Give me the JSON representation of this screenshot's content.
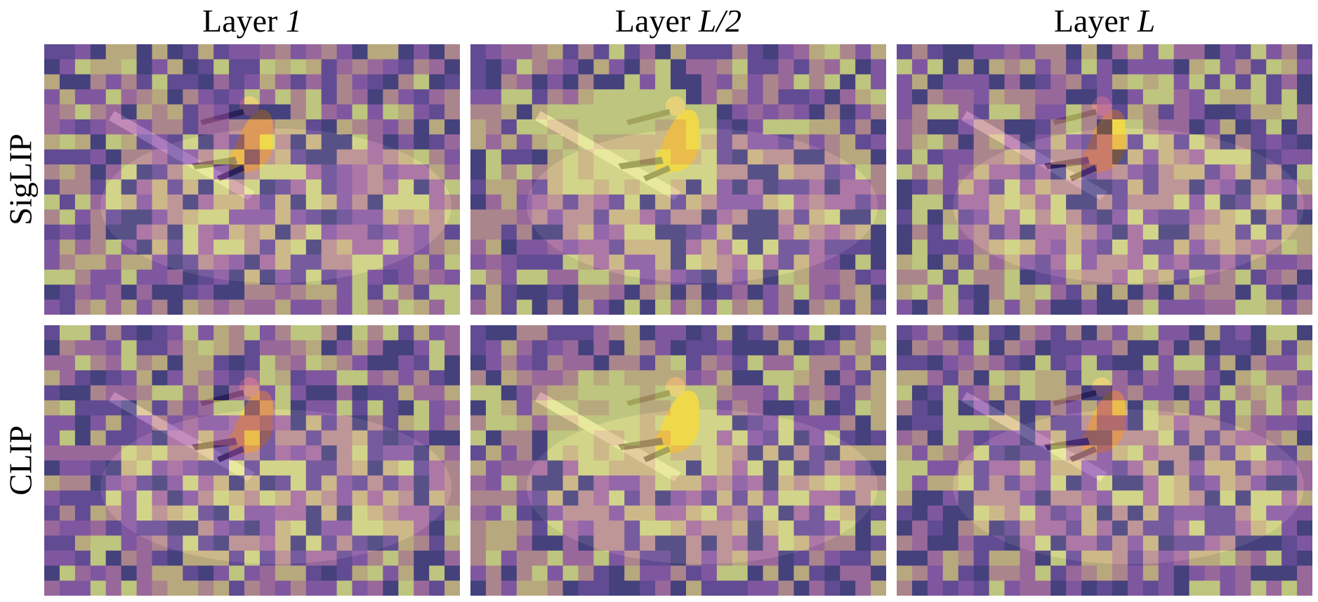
{
  "columns": [
    {
      "prefix": "Layer ",
      "layer": "1"
    },
    {
      "prefix": "Layer ",
      "layer": "L/2"
    },
    {
      "prefix": "Layer ",
      "layer": "L"
    }
  ],
  "rows": [
    {
      "label": "SigLIP"
    },
    {
      "label": "CLIP"
    }
  ],
  "panel_content": "attention-heatmap overlay on surfer photo",
  "colormap": [
    "#2a1c78",
    "#5a2c9c",
    "#8a3fb0",
    "#b35aa8",
    "#d08a90",
    "#e6c27a",
    "#eef07a"
  ]
}
